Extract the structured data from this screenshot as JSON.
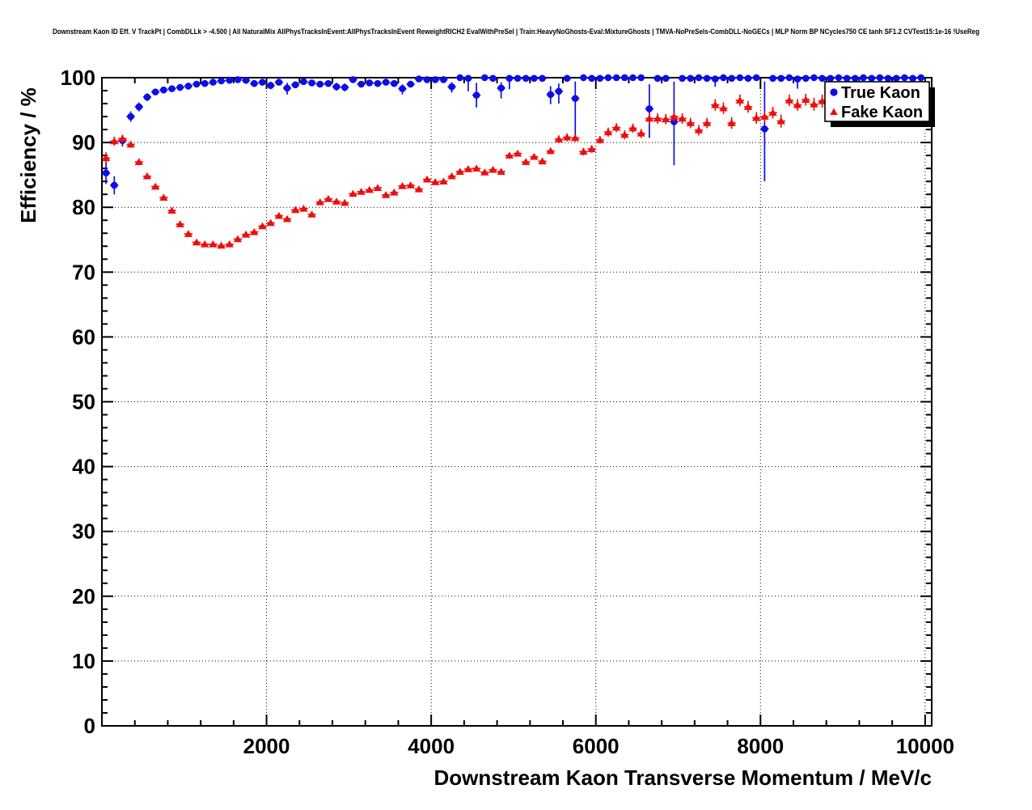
{
  "chart_data": {
    "type": "scatter",
    "title": "Downstream Kaon ID Eff. V TrackPt | CombDLLk > -4.500 | All NaturalMix AllPhysTracksInEvent:AllPhysTracksInEvent ReweightRICH2 EvalWithPreSel | Train:HeavyNoGhosts-Eval:MixtureGhosts | TMVA-NoPreSels-CombDLL-NoGECs | MLP Norm BP NCycles750 CE tanh SF1.2 CVTest15:1e-16 !UseReg",
    "xlabel": "Downstream Kaon Transverse Momentum / MeV/c",
    "ylabel": "Efficiency / %",
    "xlim": [
      0,
      10080
    ],
    "ylim": [
      0,
      100
    ],
    "x_major_tick_step": 2000,
    "x_minor_tick_step": 400,
    "y_major_tick_step": 10,
    "y_minor_tick_step": 2,
    "x_tick_labels": [
      "2000",
      "4000",
      "6000",
      "8000",
      "10000"
    ],
    "y_tick_labels": [
      "0",
      "10",
      "20",
      "30",
      "40",
      "50",
      "60",
      "70",
      "80",
      "90",
      "100"
    ],
    "grid": true,
    "grid_style": "dotted",
    "bin_half_width": 50,
    "frame_color": "#000000",
    "background_color": "#ffffff",
    "legend": {
      "position": "top-right",
      "entries": [
        {
          "label": "True Kaon",
          "marker": "circle",
          "color": "#0d0de6"
        },
        {
          "label": "Fake Kaon",
          "marker": "triangle",
          "color": "#ee0e0e"
        }
      ]
    },
    "series": [
      {
        "name": "True Kaon",
        "marker": "circle",
        "color": "#0d0de6",
        "default_err": 0.3,
        "points": [
          [
            50,
            85.3,
            1.7,
            1.7
          ],
          [
            150,
            83.4,
            1.4,
            1.4
          ],
          [
            250,
            90.3,
            0.9,
            0.9
          ],
          [
            350,
            94.0,
            0.8,
            0.8
          ],
          [
            450,
            95.5,
            0.7,
            0.7
          ],
          [
            550,
            97.0,
            0.6,
            0.6
          ],
          [
            650,
            97.8,
            0.5,
            0.5
          ],
          [
            750,
            98.1,
            0.5,
            0.5
          ],
          [
            850,
            98.3,
            0.4,
            0.4
          ],
          [
            950,
            98.5,
            0.4,
            0.4
          ],
          [
            1050,
            98.7,
            0.4,
            0.4
          ],
          [
            1150,
            99.0
          ],
          [
            1250,
            99.1
          ],
          [
            1350,
            99.3
          ],
          [
            1450,
            99.5
          ],
          [
            1550,
            99.6
          ],
          [
            1650,
            99.7
          ],
          [
            1750,
            99.6
          ],
          [
            1850,
            99.1,
            0.5,
            0.5
          ],
          [
            1950,
            99.3
          ],
          [
            2050,
            98.8,
            0.6,
            0.6
          ],
          [
            2150,
            99.3
          ],
          [
            2250,
            98.4,
            1.0,
            0.8
          ],
          [
            2350,
            98.9
          ],
          [
            2450,
            99.4
          ],
          [
            2550,
            99.2
          ],
          [
            2650,
            99.0
          ],
          [
            2750,
            99.1
          ],
          [
            2850,
            98.6,
            0.6,
            0.6
          ],
          [
            2950,
            98.5,
            0.6,
            0.6
          ],
          [
            3050,
            99.7
          ],
          [
            3150,
            99.0
          ],
          [
            3250,
            99.2
          ],
          [
            3350,
            99.1
          ],
          [
            3450,
            99.3
          ],
          [
            3550,
            99.1
          ],
          [
            3650,
            98.3,
            0.9,
            0.7
          ],
          [
            3750,
            99.0
          ],
          [
            3850,
            99.8
          ],
          [
            3950,
            99.7
          ],
          [
            4050,
            99.7
          ],
          [
            4150,
            99.7
          ],
          [
            4250,
            98.6,
            0.9,
            0.7
          ],
          [
            4350,
            100.0,
            0.05,
            0.05
          ],
          [
            4450,
            99.9,
            2.0,
            0.1
          ],
          [
            4550,
            97.3,
            1.9,
            1.9
          ],
          [
            4650,
            100.0,
            0.05,
            0.05
          ],
          [
            4750,
            99.9
          ],
          [
            4850,
            98.4,
            1.6,
            0.9
          ],
          [
            4950,
            99.9,
            1.7,
            0.1
          ],
          [
            5050,
            99.9
          ],
          [
            5150,
            99.9
          ],
          [
            5250,
            99.9
          ],
          [
            5350,
            99.9
          ],
          [
            5450,
            97.4,
            1.5,
            1.3
          ],
          [
            5550,
            97.9,
            1.9,
            1.2
          ],
          [
            5650,
            99.9
          ],
          [
            5750,
            96.8,
            6.2,
            2.6
          ],
          [
            5850,
            100.0,
            0.05,
            0.05
          ],
          [
            5950,
            99.9
          ],
          [
            6050,
            99.9
          ],
          [
            6150,
            100.0,
            0.05,
            0.05
          ],
          [
            6250,
            100.0,
            0.05,
            0.05
          ],
          [
            6350,
            100.0,
            0.05,
            0.05
          ],
          [
            6450,
            100.0,
            0.05,
            0.05
          ],
          [
            6550,
            100.0,
            0.05,
            0.05
          ],
          [
            6650,
            95.2,
            4.5,
            3.8
          ],
          [
            6750,
            99.9
          ],
          [
            6850,
            99.9
          ],
          [
            6950,
            93.2,
            6.7,
            6.2
          ],
          [
            7050,
            99.9
          ],
          [
            7150,
            99.9
          ],
          [
            7250,
            100.0,
            0.05,
            0.05
          ],
          [
            7350,
            99.9
          ],
          [
            7450,
            99.8,
            1.2,
            0.2
          ],
          [
            7550,
            100.0,
            0.05,
            0.05
          ],
          [
            7650,
            99.9
          ],
          [
            7750,
            100.0,
            0.05,
            0.05
          ],
          [
            7850,
            99.9
          ],
          [
            7950,
            100.0,
            0.05,
            0.05
          ],
          [
            8050,
            92.1,
            8.1,
            7.3
          ],
          [
            8150,
            99.9
          ],
          [
            8250,
            99.9
          ],
          [
            8350,
            100.0,
            0.05,
            0.05
          ],
          [
            8450,
            99.8,
            1.5,
            0.2
          ],
          [
            8550,
            99.9
          ],
          [
            8650,
            100.0,
            0.05,
            0.05
          ],
          [
            8750,
            99.9
          ],
          [
            8850,
            99.9
          ],
          [
            8950,
            100.0,
            0.05,
            0.05
          ],
          [
            9050,
            99.9
          ],
          [
            9150,
            99.9
          ],
          [
            9250,
            100.0,
            0.05,
            0.05
          ],
          [
            9350,
            99.9
          ],
          [
            9450,
            100.0,
            0.05,
            0.05
          ],
          [
            9550,
            99.9
          ],
          [
            9650,
            99.9
          ],
          [
            9750,
            100.0,
            0.05,
            0.05
          ],
          [
            9850,
            99.9
          ],
          [
            9950,
            100.0,
            0.05,
            0.05
          ]
        ]
      },
      {
        "name": "Fake Kaon",
        "marker": "triangle",
        "color": "#ee0e0e",
        "default_err": 0.45,
        "points": [
          [
            50,
            87.6,
            0.9,
            0.9
          ],
          [
            150,
            90.2,
            0.7,
            0.7
          ],
          [
            250,
            90.6,
            0.6,
            0.6
          ],
          [
            350,
            89.7,
            0.5,
            0.5
          ],
          [
            450,
            87.0,
            0.5,
            0.5
          ],
          [
            550,
            84.8
          ],
          [
            650,
            83.2
          ],
          [
            750,
            81.5
          ],
          [
            850,
            79.5
          ],
          [
            950,
            77.4
          ],
          [
            1050,
            75.9
          ],
          [
            1150,
            74.6
          ],
          [
            1250,
            74.3
          ],
          [
            1350,
            74.3
          ],
          [
            1450,
            74.1
          ],
          [
            1550,
            74.3
          ],
          [
            1650,
            75.1
          ],
          [
            1750,
            75.8
          ],
          [
            1850,
            76.2
          ],
          [
            1950,
            77.1
          ],
          [
            2050,
            77.6
          ],
          [
            2150,
            78.7
          ],
          [
            2250,
            78.2
          ],
          [
            2350,
            79.6
          ],
          [
            2450,
            79.8
          ],
          [
            2550,
            78.9
          ],
          [
            2650,
            80.8
          ],
          [
            2750,
            81.3
          ],
          [
            2850,
            80.9
          ],
          [
            2950,
            80.7
          ],
          [
            3050,
            82.1
          ],
          [
            3150,
            82.4
          ],
          [
            3250,
            82.7
          ],
          [
            3350,
            83.0
          ],
          [
            3450,
            81.9
          ],
          [
            3550,
            82.3
          ],
          [
            3650,
            83.3
          ],
          [
            3750,
            83.4
          ],
          [
            3850,
            82.8
          ],
          [
            3950,
            84.3
          ],
          [
            4050,
            83.9
          ],
          [
            4150,
            84.0
          ],
          [
            4250,
            84.8
          ],
          [
            4350,
            85.5
          ],
          [
            4450,
            85.9
          ],
          [
            4550,
            86.0
          ],
          [
            4650,
            85.4
          ],
          [
            4750,
            85.8
          ],
          [
            4850,
            85.5
          ],
          [
            4950,
            88.0
          ],
          [
            5050,
            88.3
          ],
          [
            5150,
            87.0
          ],
          [
            5250,
            87.8
          ],
          [
            5350,
            87.1
          ],
          [
            5450,
            88.7
          ],
          [
            5550,
            90.5,
            0.6,
            0.6
          ],
          [
            5650,
            90.8,
            0.6,
            0.6
          ],
          [
            5750,
            90.7,
            0.6,
            0.6
          ],
          [
            5850,
            88.6,
            0.6,
            0.6
          ],
          [
            5950,
            89.0,
            0.6,
            0.6
          ],
          [
            6050,
            90.4,
            0.6,
            0.6
          ],
          [
            6150,
            91.6,
            0.7,
            0.7
          ],
          [
            6250,
            92.3,
            0.7,
            0.7
          ],
          [
            6350,
            91.2,
            0.7,
            0.7
          ],
          [
            6450,
            92.2,
            0.7,
            0.7
          ],
          [
            6550,
            91.4,
            0.7,
            0.7
          ],
          [
            6650,
            93.7,
            0.8,
            0.8
          ],
          [
            6750,
            93.7,
            0.8,
            0.8
          ],
          [
            6850,
            93.6,
            0.8,
            0.8
          ],
          [
            6950,
            94.0,
            0.8,
            0.8
          ],
          [
            7050,
            93.7,
            0.8,
            0.8
          ],
          [
            7150,
            93.0,
            0.8,
            0.8
          ],
          [
            7250,
            91.9,
            0.8,
            0.8
          ],
          [
            7350,
            93.0,
            0.8,
            0.8
          ],
          [
            7450,
            95.8,
            0.9,
            0.9
          ],
          [
            7550,
            95.3,
            0.9,
            0.9
          ],
          [
            7650,
            93.0,
            0.9,
            0.9
          ],
          [
            7750,
            96.5,
            0.9,
            0.9
          ],
          [
            7850,
            95.5,
            0.9,
            0.9
          ],
          [
            7950,
            93.8,
            0.9,
            0.9
          ],
          [
            8050,
            94.0,
            0.9,
            0.9
          ],
          [
            8150,
            94.6,
            0.9,
            0.9
          ],
          [
            8250,
            93.3,
            1.0,
            1.0
          ],
          [
            8350,
            96.5,
            0.9,
            0.9
          ],
          [
            8450,
            95.8,
            0.9,
            0.9
          ],
          [
            8550,
            96.6,
            0.9,
            0.9
          ],
          [
            8650,
            95.9,
            1.0,
            1.0
          ],
          [
            8750,
            96.4,
            1.0,
            1.0
          ],
          [
            8850,
            97.0,
            1.0,
            1.0
          ]
        ]
      }
    ]
  }
}
